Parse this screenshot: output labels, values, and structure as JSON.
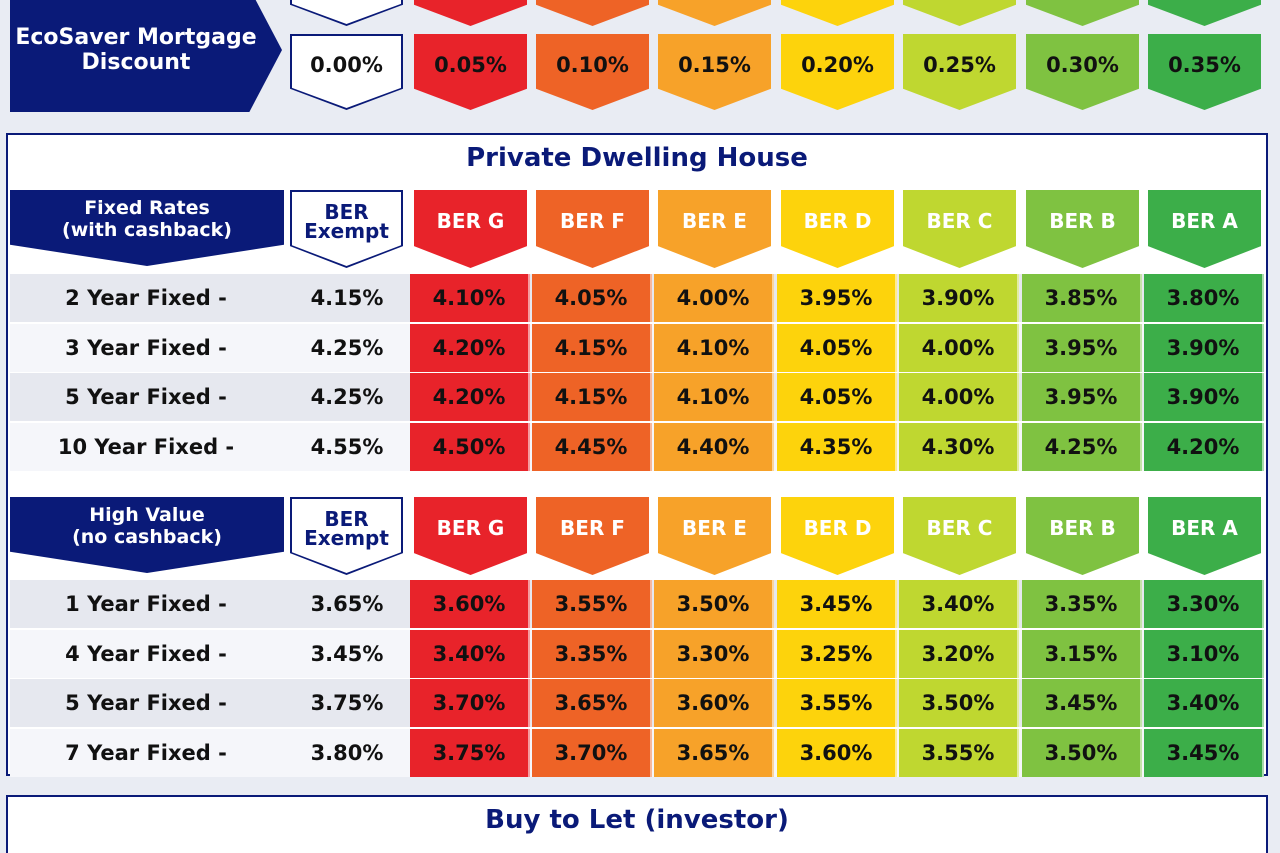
{
  "colors": {
    "navy": "#0a1a78",
    "ber_g": "#e8232a",
    "ber_f": "#ee6326",
    "ber_e": "#f7a229",
    "ber_d": "#fdd30c",
    "ber_c": "#bfd730",
    "ber_b": "#7fc241",
    "ber_a": "#3cae49"
  },
  "ecosaver": {
    "label_line1": "EcoSaver Mortgage",
    "label_line2": "Discount",
    "discounts": [
      "0.00%",
      "0.05%",
      "0.10%",
      "0.15%",
      "0.20%",
      "0.25%",
      "0.30%",
      "0.35%"
    ]
  },
  "private": {
    "title": "Private Dwelling House",
    "fixed": {
      "header_line1": "Fixed Rates",
      "header_line2": "(with cashback)",
      "exempt_line1": "BER",
      "exempt_line2": "Exempt",
      "ber_labels": [
        "BER G",
        "BER F",
        "BER E",
        "BER D",
        "BER C",
        "BER B",
        "BER A"
      ],
      "rows": [
        {
          "label": "2 Year Fixed -",
          "exempt": "4.15%",
          "rates": [
            "4.10%",
            "4.05%",
            "4.00%",
            "3.95%",
            "3.90%",
            "3.85%",
            "3.80%"
          ]
        },
        {
          "label": "3 Year Fixed -",
          "exempt": "4.25%",
          "rates": [
            "4.20%",
            "4.15%",
            "4.10%",
            "4.05%",
            "4.00%",
            "3.95%",
            "3.90%"
          ]
        },
        {
          "label": "5 Year Fixed -",
          "exempt": "4.25%",
          "rates": [
            "4.20%",
            "4.15%",
            "4.10%",
            "4.05%",
            "4.00%",
            "3.95%",
            "3.90%"
          ]
        },
        {
          "label": "10 Year Fixed -",
          "exempt": "4.55%",
          "rates": [
            "4.50%",
            "4.45%",
            "4.40%",
            "4.35%",
            "4.30%",
            "4.25%",
            "4.20%"
          ]
        }
      ]
    },
    "high_value": {
      "header_line1": "High Value",
      "header_line2": "(no cashback)",
      "exempt_line1": "BER",
      "exempt_line2": "Exempt",
      "ber_labels": [
        "BER G",
        "BER F",
        "BER E",
        "BER D",
        "BER C",
        "BER B",
        "BER A"
      ],
      "rows": [
        {
          "label": "1 Year Fixed -",
          "exempt": "3.65%",
          "rates": [
            "3.60%",
            "3.55%",
            "3.50%",
            "3.45%",
            "3.40%",
            "3.35%",
            "3.30%"
          ]
        },
        {
          "label": "4 Year Fixed -",
          "exempt": "3.45%",
          "rates": [
            "3.40%",
            "3.35%",
            "3.30%",
            "3.25%",
            "3.20%",
            "3.15%",
            "3.10%"
          ]
        },
        {
          "label": "5 Year Fixed -",
          "exempt": "3.75%",
          "rates": [
            "3.70%",
            "3.65%",
            "3.60%",
            "3.55%",
            "3.50%",
            "3.45%",
            "3.40%"
          ]
        },
        {
          "label": "7 Year Fixed -",
          "exempt": "3.80%",
          "rates": [
            "3.75%",
            "3.70%",
            "3.65%",
            "3.60%",
            "3.55%",
            "3.50%",
            "3.45%"
          ]
        }
      ]
    }
  },
  "buy_to_let": {
    "title": "Buy to Let (investor)"
  }
}
